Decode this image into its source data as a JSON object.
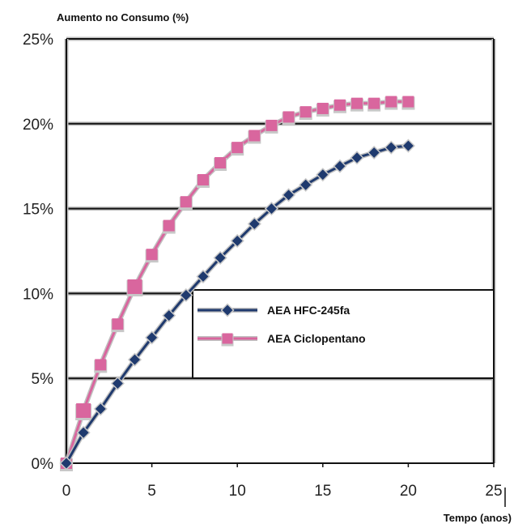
{
  "chart_data": {
    "type": "line",
    "title": "",
    "ylabel": "Aumento no Consumo (%)",
    "xlabel": "Tempo (anos)",
    "xlim": [
      0,
      25
    ],
    "ylim": [
      0,
      25
    ],
    "x_ticks": [
      "0",
      "5",
      "10",
      "15",
      "20",
      "25"
    ],
    "y_ticks": [
      "0%",
      "5%",
      "10%",
      "15%",
      "20%",
      "25%"
    ],
    "grid": "horizontal",
    "legend_position": "center-right",
    "series": [
      {
        "name": "AEA  HFC-245fa",
        "color": "#1f3a6e",
        "marker": "diamond",
        "x": [
          0,
          1,
          2,
          3,
          4,
          5,
          6,
          7,
          8,
          9,
          10,
          11,
          12,
          13,
          14,
          15,
          16,
          17,
          18,
          19,
          20
        ],
        "values": [
          0,
          1.8,
          3.2,
          4.7,
          6.1,
          7.4,
          8.7,
          9.9,
          11.0,
          12.1,
          13.1,
          14.1,
          15.0,
          15.8,
          16.4,
          17.0,
          17.5,
          18.0,
          18.3,
          18.6,
          18.7
        ]
      },
      {
        "name": "AEA Ciclopentano",
        "color": "#d9669e",
        "marker": "square",
        "x": [
          0,
          1,
          2,
          3,
          4,
          5,
          6,
          7,
          8,
          9,
          10,
          11,
          12,
          13,
          14,
          15,
          16,
          17,
          18,
          19,
          20
        ],
        "values": [
          0,
          3.1,
          5.8,
          8.2,
          10.4,
          12.3,
          14.0,
          15.4,
          16.7,
          17.7,
          18.6,
          19.3,
          19.9,
          20.4,
          20.7,
          20.9,
          21.1,
          21.2,
          21.2,
          21.3,
          21.3
        ]
      }
    ]
  }
}
